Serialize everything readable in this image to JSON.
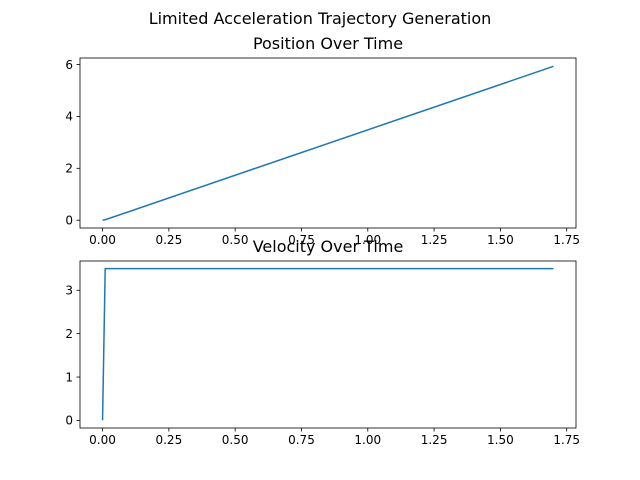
{
  "figure": {
    "suptitle": "Limited Acceleration Trajectory Generation"
  },
  "chart_data": [
    {
      "type": "line",
      "title": "Position Over Time",
      "xlabel": "",
      "ylabel": "",
      "xlim": [
        -0.085,
        1.785
      ],
      "ylim": [
        -0.3,
        6.25
      ],
      "xticks": [
        0.0,
        0.25,
        0.5,
        0.75,
        1.0,
        1.25,
        1.5,
        1.75
      ],
      "xtick_labels": [
        "0.00",
        "0.25",
        "0.50",
        "0.75",
        "1.00",
        "1.25",
        "1.50",
        "1.75"
      ],
      "yticks": [
        0,
        2,
        4,
        6
      ],
      "ytick_labels": [
        "0",
        "2",
        "4",
        "6"
      ],
      "grid": false,
      "series": [
        {
          "color": "#1f77b4",
          "x": [
            0.0,
            0.01,
            1.7
          ],
          "y": [
            0.0,
            0.0175,
            5.93
          ]
        }
      ]
    },
    {
      "type": "line",
      "title": "Velocity Over Time",
      "xlabel": "",
      "ylabel": "",
      "xlim": [
        -0.085,
        1.785
      ],
      "ylim": [
        -0.175,
        3.675
      ],
      "xticks": [
        0.0,
        0.25,
        0.5,
        0.75,
        1.0,
        1.25,
        1.5,
        1.75
      ],
      "xtick_labels": [
        "0.00",
        "0.25",
        "0.50",
        "0.75",
        "1.00",
        "1.25",
        "1.50",
        "1.75"
      ],
      "yticks": [
        0,
        1,
        2,
        3
      ],
      "ytick_labels": [
        "0",
        "1",
        "2",
        "3"
      ],
      "grid": false,
      "series": [
        {
          "color": "#1f77b4",
          "x": [
            0.0,
            0.01,
            1.7
          ],
          "y": [
            0.0,
            3.5,
            3.5
          ]
        }
      ]
    }
  ]
}
